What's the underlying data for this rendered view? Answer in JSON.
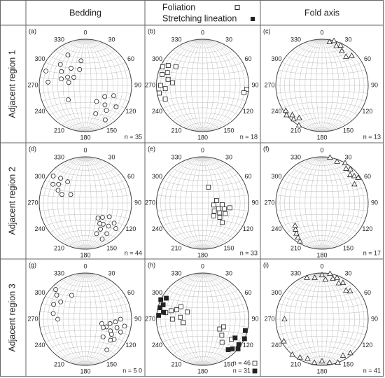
{
  "header": {
    "columns": [
      "Bedding",
      {
        "foliation": "Foliation",
        "lineation": "Stretching lineation"
      },
      "Fold axis"
    ]
  },
  "rows": [
    "Adjacent region 1",
    "Adjacent region 2",
    "Adjacent region 3"
  ],
  "azimuth_labels": [
    0,
    30,
    60,
    90,
    120,
    150,
    180,
    210,
    240,
    270,
    300,
    330
  ],
  "panels": [
    {
      "label": "(a)",
      "count_labels": [
        "n = 35"
      ],
      "series": [
        {
          "symbol": "open-circle",
          "points": [
            [
              300,
              40
            ],
            [
              310,
              30
            ],
            [
              295,
              55
            ],
            [
              320,
              50
            ],
            [
              285,
              45
            ],
            [
              330,
              25
            ],
            [
              280,
              60
            ],
            [
              305,
              65
            ],
            [
              340,
              60
            ],
            [
              350,
              45
            ],
            [
              275,
              20
            ],
            [
              290,
              10
            ],
            [
              135,
              40
            ],
            [
              140,
              30
            ],
            [
              125,
              20
            ],
            [
              150,
              15
            ],
            [
              120,
              50
            ],
            [
              145,
              55
            ],
            [
              160,
              35
            ],
            [
              230,
              50
            ],
            [
              110,
              35
            ]
          ]
        }
      ]
    },
    {
      "label": "(b)",
      "count_labels": [
        "n = 18"
      ],
      "series": [
        {
          "symbol": "open-square",
          "points": [
            [
              285,
              10
            ],
            [
              290,
              20
            ],
            [
              280,
              25
            ],
            [
              295,
              5
            ],
            [
              300,
              15
            ],
            [
              270,
              10
            ],
            [
              265,
              20
            ],
            [
              260,
              5
            ],
            [
              305,
              30
            ],
            [
              275,
              35
            ],
            [
              95,
              5
            ],
            [
              100,
              10
            ],
            [
              250,
              15
            ]
          ]
        }
      ]
    },
    {
      "label": "(c)",
      "count_labels": [
        "n = 13"
      ],
      "series": [
        {
          "symbol": "open-triangle",
          "points": [
            [
              10,
              5
            ],
            [
              20,
              10
            ],
            [
              25,
              5
            ],
            [
              15,
              0
            ],
            [
              30,
              15
            ],
            [
              40,
              20
            ],
            [
              45,
              10
            ],
            [
              220,
              5
            ],
            [
              225,
              10
            ],
            [
              230,
              0
            ],
            [
              215,
              15
            ],
            [
              235,
              5
            ],
            [
              210,
              0
            ]
          ]
        }
      ]
    },
    {
      "label": "(d)",
      "count_labels": [
        "n = 44"
      ],
      "series": [
        {
          "symbol": "open-circle",
          "points": [
            [
              300,
              20
            ],
            [
              305,
              30
            ],
            [
              310,
              10
            ],
            [
              295,
              35
            ],
            [
              315,
              25
            ],
            [
              290,
              45
            ],
            [
              320,
              40
            ],
            [
              300,
              60
            ],
            [
              140,
              40
            ],
            [
              135,
              30
            ],
            [
              145,
              20
            ],
            [
              130,
              50
            ],
            [
              150,
              35
            ],
            [
              125,
              25
            ],
            [
              155,
              15
            ],
            [
              140,
              55
            ],
            [
              120,
              40
            ],
            [
              160,
              30
            ],
            [
              145,
              45
            ],
            [
              130,
              15
            ]
          ]
        }
      ]
    },
    {
      "label": "(e)",
      "count_labels": [
        "n = 33"
      ],
      "series": [
        {
          "symbol": "open-square",
          "points": [
            [
              100,
              70
            ],
            [
              110,
              60
            ],
            [
              120,
              55
            ],
            [
              130,
              50
            ],
            [
              115,
              45
            ],
            [
              125,
              65
            ],
            [
              140,
              60
            ],
            [
              105,
              50
            ],
            [
              95,
              55
            ],
            [
              135,
              40
            ],
            [
              80,
              65
            ],
            [
              100,
              40
            ],
            [
              20,
              60
            ]
          ]
        }
      ]
    },
    {
      "label": "(f)",
      "count_labels": [
        "n = 17"
      ],
      "series": [
        {
          "symbol": "open-triangle",
          "points": [
            [
              30,
              0
            ],
            [
              40,
              5
            ],
            [
              35,
              10
            ],
            [
              45,
              15
            ],
            [
              50,
              10
            ],
            [
              55,
              5
            ],
            [
              20,
              5
            ],
            [
              10,
              0
            ],
            [
              60,
              20
            ],
            [
              215,
              10
            ],
            [
              220,
              15
            ],
            [
              210,
              5
            ],
            [
              225,
              20
            ],
            [
              230,
              25
            ]
          ]
        }
      ]
    },
    {
      "label": "(g)",
      "count_labels": [
        "n = 5 0"
      ],
      "series": [
        {
          "symbol": "open-circle",
          "points": [
            [
              310,
              20
            ],
            [
              305,
              35
            ],
            [
              315,
              10
            ],
            [
              295,
              25
            ],
            [
              280,
              30
            ],
            [
              330,
              40
            ],
            [
              270,
              40
            ],
            [
              110,
              50
            ],
            [
              115,
              40
            ],
            [
              105,
              30
            ],
            [
              120,
              35
            ],
            [
              100,
              45
            ],
            [
              125,
              25
            ],
            [
              95,
              35
            ],
            [
              110,
              20
            ],
            [
              130,
              30
            ],
            [
              100,
              15
            ],
            [
              90,
              25
            ],
            [
              115,
              55
            ],
            [
              135,
              45
            ],
            [
              145,
              20
            ],
            [
              105,
              60
            ]
          ]
        }
      ]
    },
    {
      "label": "(h)",
      "count_labels": [
        "n = 46",
        "n = 31"
      ],
      "series": [
        {
          "symbol": "open-square",
          "points": [
            [
              280,
              20
            ],
            [
              285,
              30
            ],
            [
              290,
              40
            ],
            [
              275,
              50
            ],
            [
              295,
              60
            ],
            [
              300,
              45
            ],
            [
              270,
              35
            ],
            [
              260,
              55
            ],
            [
              120,
              55
            ],
            [
              130,
              45
            ],
            [
              110,
              50
            ],
            [
              140,
              35
            ],
            [
              125,
              25
            ]
          ]
        },
        {
          "symbol": "filled-square",
          "points": [
            [
              285,
              5
            ],
            [
              290,
              10
            ],
            [
              280,
              15
            ],
            [
              295,
              0
            ],
            [
              300,
              10
            ],
            [
              275,
              5
            ],
            [
              135,
              10
            ],
            [
              130,
              0
            ],
            [
              125,
              5
            ],
            [
              140,
              15
            ],
            [
              115,
              0
            ],
            [
              105,
              5
            ],
            [
              120,
              20
            ]
          ]
        }
      ]
    },
    {
      "label": "(i)",
      "count_labels": [
        "n = 41"
      ],
      "series": [
        {
          "symbol": "open-triangle",
          "points": [
            [
              0,
              5
            ],
            [
              10,
              0
            ],
            [
              15,
              10
            ],
            [
              5,
              15
            ],
            [
              20,
              5
            ],
            [
              25,
              15
            ],
            [
              30,
              10
            ],
            [
              350,
              10
            ],
            [
              340,
              5
            ],
            [
              40,
              20
            ],
            [
              45,
              15
            ],
            [
              180,
              10
            ],
            [
              170,
              5
            ],
            [
              190,
              5
            ],
            [
              200,
              10
            ],
            [
              160,
              0
            ],
            [
              150,
              10
            ],
            [
              210,
              5
            ],
            [
              220,
              0
            ],
            [
              140,
              5
            ],
            [
              270,
              20
            ],
            [
              240,
              5
            ]
          ]
        }
      ]
    }
  ]
}
